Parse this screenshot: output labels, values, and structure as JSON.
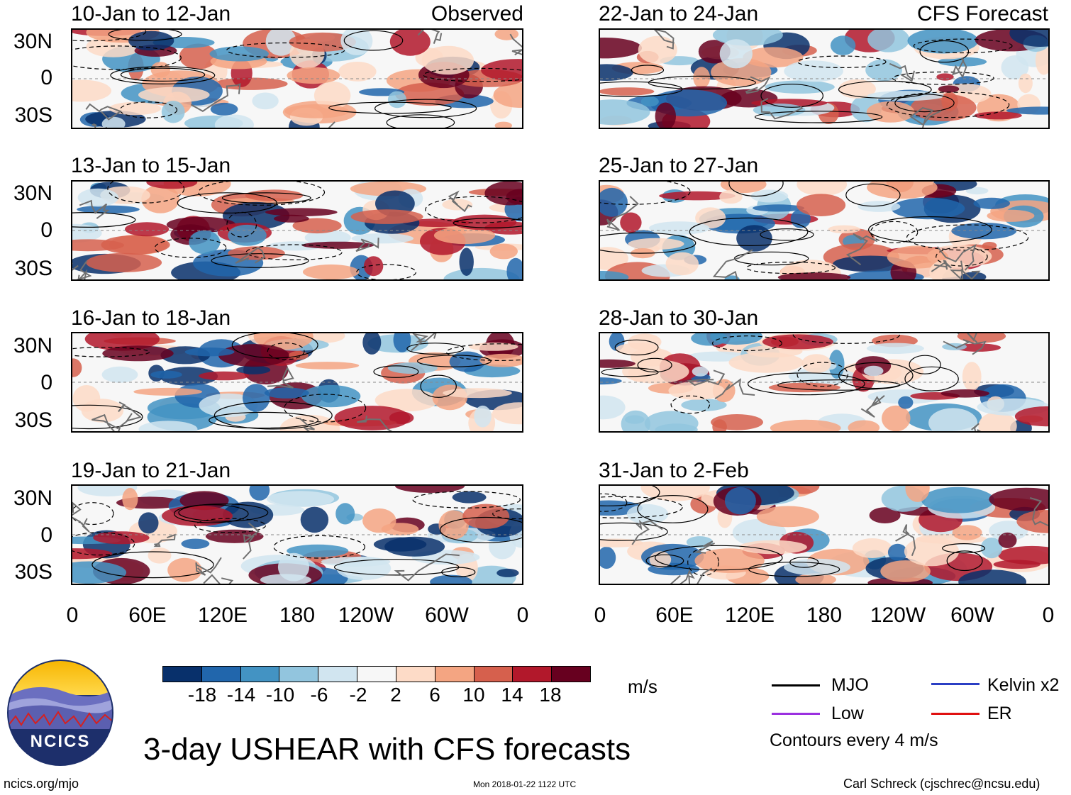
{
  "panels": [
    {
      "period": "10-Jan to 12-Jan",
      "label": "Observed"
    },
    {
      "period": "13-Jan to 15-Jan",
      "label": ""
    },
    {
      "period": "16-Jan to 18-Jan",
      "label": ""
    },
    {
      "period": "19-Jan to 21-Jan",
      "label": ""
    },
    {
      "period": "22-Jan to 24-Jan",
      "label": "CFS Forecast"
    },
    {
      "period": "25-Jan to 27-Jan",
      "label": ""
    },
    {
      "period": "28-Jan to 30-Jan",
      "label": ""
    },
    {
      "period": "31-Jan to 2-Feb",
      "label": ""
    }
  ],
  "lat_labels": [
    "30N",
    "0",
    "30S"
  ],
  "lon_labels": [
    "0",
    "60E",
    "120E",
    "180",
    "120W",
    "60W",
    "0"
  ],
  "colorbar": {
    "colors": [
      "#08306b",
      "#2166ac",
      "#4393c3",
      "#92c5de",
      "#d1e5f0",
      "#f7f7f7",
      "#fddbc7",
      "#f4a582",
      "#d6604d",
      "#b2182b",
      "#67001f"
    ],
    "ticks": [
      "-18",
      "-14",
      "-10",
      "-6",
      "-2",
      "2",
      "6",
      "10",
      "14",
      "18"
    ],
    "units": "m/s"
  },
  "legend": {
    "items": [
      {
        "name": "MJO",
        "color": "#000000"
      },
      {
        "name": "Kelvin x2",
        "color": "#2b3fc4"
      },
      {
        "name": "Low",
        "color": "#9b30e0"
      },
      {
        "name": "ER",
        "color": "#e01010"
      }
    ],
    "note": "Contours every 4 m/s"
  },
  "title": "3-day USHEAR with CFS forecasts",
  "logo_text": "NCICS",
  "footer": {
    "url": "ncics.org/mjo",
    "timestamp": "Mon 2018-01-22 1122 UTC",
    "author": "Carl Schreck (cjschrec@ncsu.edu)"
  }
}
